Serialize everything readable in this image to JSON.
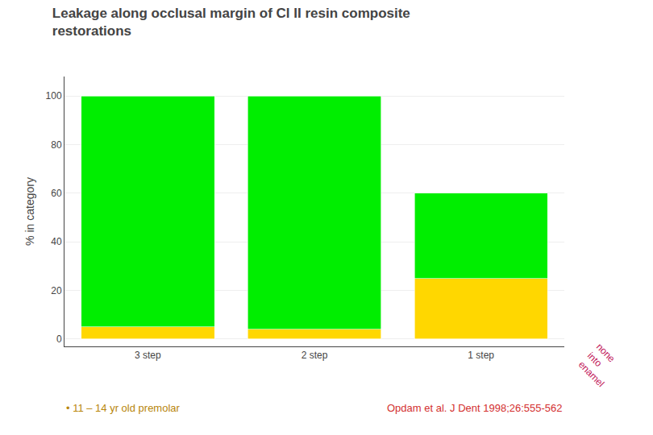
{
  "chart_data": {
    "type": "bar",
    "title": "Leakage along occlusal margin of Cl II resin composite\nrestorations",
    "ylabel": "% in category",
    "categories": [
      "3 step",
      "2 step",
      "1 step"
    ],
    "stacked": true,
    "series": [
      {
        "color": "#FFD700",
        "values": [
          5,
          4,
          25
        ]
      },
      {
        "color": "#00EE00",
        "values": [
          95,
          96,
          35
        ]
      }
    ],
    "ylim": [
      -3,
      108
    ],
    "yticks": [
      0,
      20,
      40,
      60,
      80,
      100
    ],
    "grid": true,
    "annotations": [
      "none\ninto\nenamel",
      "• 11 – 14 yr old premolar",
      "Opdam et al. J Dent 1998;26:555-562"
    ]
  }
}
